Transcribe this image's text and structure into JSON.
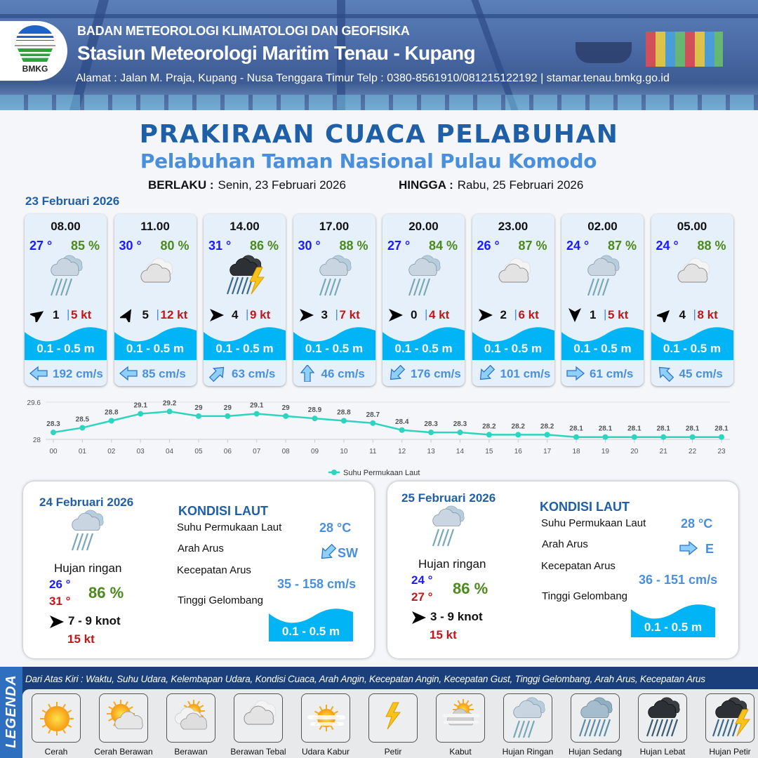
{
  "header": {
    "org": "BADAN METEOROLOGI KLIMATOLOGI DAN GEOFISIKA",
    "station": "Stasiun Meteorologi Maritim Tenau - Kupang",
    "address": "Alamat : Jalan M. Praja, Kupang - Nusa Tenggara Timur Telp : 0380-8561910/081215122192  | stamar.tenau.bmkg.go.id",
    "logo_text": "BMKG"
  },
  "title": "PRAKIRAAN CUACA PELABUHAN",
  "subtitle": "Pelabuhan Taman Nasional Pulau Komodo",
  "validity": {
    "from_label": "BERLAKU :",
    "from_value": "Senin, 23 Februari 2026",
    "to_label": "HINGGA :",
    "to_value": "Rabu, 25 Februari 2026"
  },
  "day1_date": "23 Februari 2026",
  "colors": {
    "temp": "#1a1aff",
    "humidity": "#4c8a1c",
    "gust": "#c0171b",
    "wave": "#00b4f5",
    "current": "#4a8fdc",
    "title": "#1f5fa8",
    "chart_line": "#2dd4bf"
  },
  "forecast": [
    {
      "time": "08.00",
      "temp": "27 °",
      "humidity": "85 %",
      "icon": "hujan-ringan",
      "wind_dir_deg": -35,
      "wind_speed": "1",
      "gust": "5 kt",
      "wave": "0.1 - 0.5 m",
      "current_dir": "W",
      "current_speed": "192 cm/s"
    },
    {
      "time": "11.00",
      "temp": "30 °",
      "humidity": "80 %",
      "icon": "berawan-tebal",
      "wind_dir_deg": -60,
      "wind_speed": "5",
      "gust": "12 kt",
      "wave": "0.1 - 0.5 m",
      "current_dir": "W",
      "current_speed": "85 cm/s"
    },
    {
      "time": "14.00",
      "temp": "31 °",
      "humidity": "86 %",
      "icon": "hujan-petir",
      "wind_dir_deg": 0,
      "wind_speed": "4",
      "gust": "9 kt",
      "wave": "0.1 - 0.5 m",
      "current_dir": "NE",
      "current_speed": "63 cm/s"
    },
    {
      "time": "17.00",
      "temp": "30 °",
      "humidity": "88 %",
      "icon": "hujan-ringan",
      "wind_dir_deg": 0,
      "wind_speed": "3",
      "gust": "7 kt",
      "wave": "0.1 - 0.5 m",
      "current_dir": "N",
      "current_speed": "46 cm/s"
    },
    {
      "time": "20.00",
      "temp": "27 °",
      "humidity": "84 %",
      "icon": "hujan-ringan",
      "wind_dir_deg": 0,
      "wind_speed": "0",
      "gust": "4 kt",
      "wave": "0.1 - 0.5 m",
      "current_dir": "SW",
      "current_speed": "176 cm/s"
    },
    {
      "time": "23.00",
      "temp": "26 °",
      "humidity": "87 %",
      "icon": "berawan-tebal",
      "wind_dir_deg": 0,
      "wind_speed": "2",
      "gust": "6 kt",
      "wave": "0.1 - 0.5 m",
      "current_dir": "SW",
      "current_speed": "101 cm/s"
    },
    {
      "time": "02.00",
      "temp": "24 °",
      "humidity": "87 %",
      "icon": "hujan-ringan",
      "wind_dir_deg": 90,
      "wind_speed": "1",
      "gust": "5 kt",
      "wave": "0.1 - 0.5 m",
      "current_dir": "E",
      "current_speed": "61 cm/s"
    },
    {
      "time": "05.00",
      "temp": "24 °",
      "humidity": "88 %",
      "icon": "berawan-tebal",
      "wind_dir_deg": -45,
      "wind_speed": "4",
      "gust": "8 kt",
      "wave": "0.1 - 0.5 m",
      "current_dir": "NW",
      "current_speed": "45 cm/s"
    }
  ],
  "chart_data": {
    "type": "line",
    "x": [
      "00",
      "01",
      "02",
      "03",
      "04",
      "05",
      "06",
      "07",
      "08",
      "09",
      "10",
      "11",
      "12",
      "13",
      "14",
      "15",
      "16",
      "17",
      "18",
      "19",
      "20",
      "21",
      "22",
      "23"
    ],
    "series": [
      {
        "name": "Suhu Permukaan Laut",
        "values": [
          28.3,
          28.5,
          28.8,
          29.1,
          29.2,
          29.0,
          29.0,
          29.1,
          29.0,
          28.9,
          28.8,
          28.7,
          28.4,
          28.3,
          28.3,
          28.2,
          28.2,
          28.2,
          28.1,
          28.1,
          28.1,
          28.1,
          28.1,
          28.1
        ]
      }
    ],
    "ylim": [
      28,
      29.6
    ],
    "yticks": [
      "28",
      "29.6"
    ],
    "grid": true,
    "legend": "bottom"
  },
  "daily": [
    {
      "date": "24 Februari 2026",
      "icon": "hujan-ringan",
      "condition": "Hujan ringan",
      "tmin": "26 °",
      "tmax": "31 °",
      "humidity": "86 %",
      "wind": "7  - 9 knot",
      "gust": "15 kt",
      "kondisi_title": "KONDISI LAUT",
      "sst_label": "Suhu Permukaan Laut",
      "sst": "28 °C",
      "dir_label": "Arah Arus",
      "current_dir": "SW",
      "speed_label": "Kecepatan Arus",
      "current_speed": "35 - 158 cm/s",
      "wave_label": "Tinggi Gelombang",
      "wave": "0.1 - 0.5 m"
    },
    {
      "date": "25 Februari 2026",
      "icon": "hujan-ringan",
      "condition": "Hujan ringan",
      "tmin": "24 °",
      "tmax": "27 °",
      "humidity": "86 %",
      "wind": "3  - 9 knot",
      "gust": "15 kt",
      "kondisi_title": "KONDISI LAUT",
      "sst_label": "Suhu Permukaan Laut",
      "sst": "28 °C",
      "dir_label": "Arah Arus",
      "current_dir": "E",
      "speed_label": "Kecepatan Arus",
      "current_speed": "36 - 151 cm/s",
      "wave_label": "Tinggi Gelombang",
      "wave": "0.1 - 0.5 m"
    }
  ],
  "legend": {
    "title": "LEGENDA",
    "description": "Dari Atas Kiri : Waktu, Suhu Udara, Kelembapan Udara, Kondisi Cuaca, Arah Angin, Kecepatan Angin, Kecepatan Gust, Tinggi Gelombang, Arah Arus, Kecepatan Arus",
    "items": [
      {
        "label": "Cerah",
        "icon": "cerah"
      },
      {
        "label": "Cerah Berawan",
        "icon": "cerah-berawan"
      },
      {
        "label": "Berawan",
        "icon": "berawan"
      },
      {
        "label": "Berawan Tebal",
        "icon": "berawan-tebal"
      },
      {
        "label": "Udara Kabur",
        "icon": "udara-kabur"
      },
      {
        "label": "Petir",
        "icon": "petir"
      },
      {
        "label": "Kabut",
        "icon": "kabut"
      },
      {
        "label": "Hujan Ringan",
        "icon": "hujan-ringan"
      },
      {
        "label": "Hujan Sedang",
        "icon": "hujan-sedang"
      },
      {
        "label": "Hujan Lebat",
        "icon": "hujan-lebat"
      },
      {
        "label": "Hujan Petir",
        "icon": "hujan-petir"
      }
    ]
  }
}
